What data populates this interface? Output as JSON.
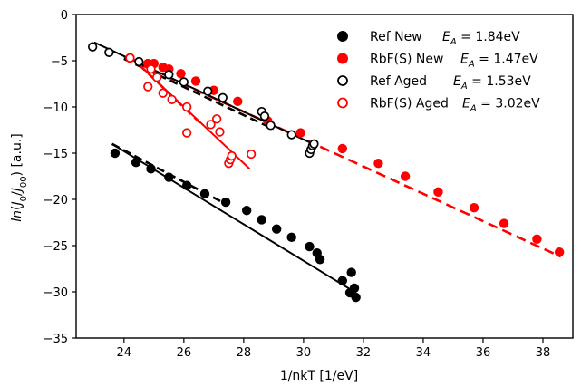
{
  "chart_data": {
    "type": "scatter",
    "xlabel": "1/nkT [1/eV]",
    "ylabel": "ln(J0/J00) [a.u.]",
    "xlim": [
      22.4,
      39.0
    ],
    "ylim": [
      -35,
      0
    ],
    "xticks": [
      24,
      26,
      28,
      30,
      32,
      34,
      36,
      38
    ],
    "yticks": [
      0,
      -5,
      -10,
      -15,
      -20,
      -25,
      -30,
      -35
    ],
    "grid": false,
    "legend_position": "top-right",
    "series": [
      {
        "name": "Ref New",
        "ea_label": "E_A = 1.84eV",
        "color": "#000000",
        "filled": true,
        "x": [
          23.7,
          24.4,
          24.9,
          25.5,
          26.1,
          26.7,
          27.4,
          28.1,
          28.6,
          29.1,
          29.6,
          30.2,
          30.45,
          30.55,
          31.3,
          31.6,
          31.55,
          31.7,
          31.75
        ],
        "y": [
          -15.0,
          -16.0,
          -16.7,
          -17.6,
          -18.5,
          -19.4,
          -20.3,
          -21.2,
          -22.2,
          -23.2,
          -24.1,
          -25.1,
          -25.8,
          -26.5,
          -28.8,
          -27.9,
          -30.1,
          -29.6,
          -30.6
        ],
        "fit": {
          "x": [
            23.6,
            31.7
          ],
          "y": [
            -14.0,
            -30.0
          ],
          "dashed": [
            [
              23.6,
              27.4
            ],
            [
              -14.0,
              -20.5
            ]
          ]
        }
      },
      {
        "name": "RbF(S) New",
        "ea_label": "E_A = 1.47eV",
        "color": "#ff0000",
        "filled": true,
        "x": [
          24.2,
          24.8,
          25.0,
          25.3,
          25.5,
          25.9,
          26.4,
          27.0,
          27.8,
          28.8,
          29.9,
          31.3,
          32.5,
          33.4,
          34.5,
          35.7,
          36.7,
          37.8,
          38.55
        ],
        "y": [
          -4.7,
          -5.3,
          -5.3,
          -5.7,
          -5.9,
          -6.4,
          -7.2,
          -8.2,
          -9.4,
          -11.5,
          -12.8,
          -14.5,
          -16.1,
          -17.5,
          -19.2,
          -20.9,
          -22.6,
          -24.3,
          -25.7
        ],
        "fit": {
          "x": [
            24.0,
            38.6
          ],
          "y": [
            -4.6,
            -26.2
          ]
        }
      },
      {
        "name": "Ref Aged",
        "ea_label": "E_A = 1.53eV",
        "color": "#000000",
        "filled": false,
        "x": [
          22.95,
          23.5,
          24.5,
          25.5,
          26.0,
          26.8,
          27.3,
          28.6,
          28.7,
          28.9,
          29.6,
          30.2,
          30.25,
          30.3,
          30.35
        ],
        "y": [
          -3.5,
          -4.1,
          -5.1,
          -6.5,
          -7.3,
          -8.3,
          -9.0,
          -10.5,
          -11.0,
          -12.0,
          -13.0,
          -15.0,
          -14.6,
          -14.2,
          -14.0
        ],
        "fit": {
          "x": [
            23.0,
            30.45
          ],
          "y": [
            -3.0,
            -14.2
          ],
          "dashed": [
            [
              24.0,
              29.0
            ],
            [
              -4.8,
              -12.4
            ]
          ]
        }
      },
      {
        "name": "RbF(S) Aged",
        "ea_label": "E_A = 3.02eV",
        "color": "#ff0000",
        "filled": false,
        "x": [
          24.2,
          24.8,
          24.9,
          25.1,
          25.3,
          25.6,
          26.1,
          26.1,
          26.9,
          27.1,
          27.2,
          27.5,
          27.55,
          27.6,
          28.25
        ],
        "y": [
          -4.7,
          -7.8,
          -5.9,
          -6.8,
          -8.5,
          -9.2,
          -10.0,
          -12.8,
          -11.9,
          -11.3,
          -12.7,
          -16.1,
          -15.7,
          -15.3,
          -15.1
        ],
        "fit": {
          "x": [
            24.2,
            28.2
          ],
          "y": [
            -4.5,
            -16.7
          ],
          "dashed": [
            [
              24.2,
              26.6
            ],
            [
              -4.5,
              -11.9
            ]
          ]
        }
      }
    ]
  }
}
